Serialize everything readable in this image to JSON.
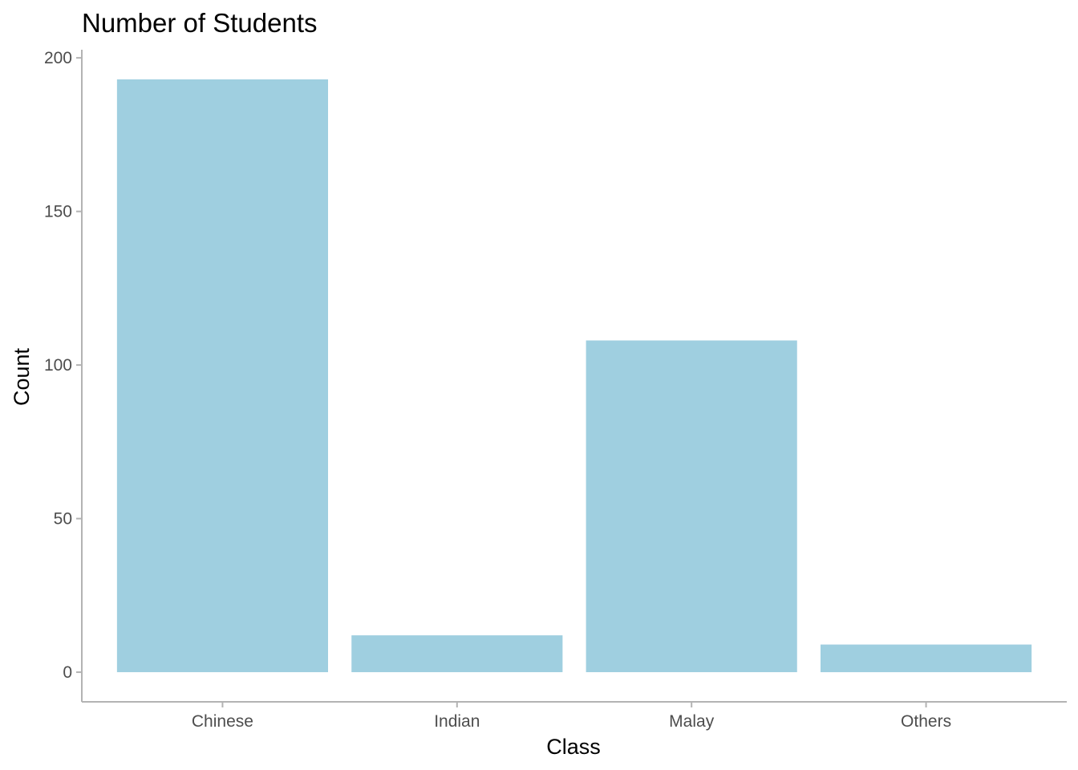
{
  "colors": {
    "bar_fill": "#9FCFE0",
    "axis_line": "#B3B3B3",
    "tick_text": "#4D4D4D",
    "title_text": "#000000"
  },
  "chart_data": {
    "type": "bar",
    "title": "Number of Students",
    "xlabel": "Class",
    "ylabel": "Count",
    "categories": [
      "Chinese",
      "Indian",
      "Malay",
      "Others"
    ],
    "values": [
      193,
      12,
      108,
      9
    ],
    "ylim": [
      -9.65,
      202.65
    ],
    "yticks": [
      0,
      50,
      100,
      150,
      200
    ],
    "ytick_labels": [
      "0",
      "50",
      "100",
      "150",
      "200"
    ],
    "grid": false,
    "legend": "none"
  }
}
